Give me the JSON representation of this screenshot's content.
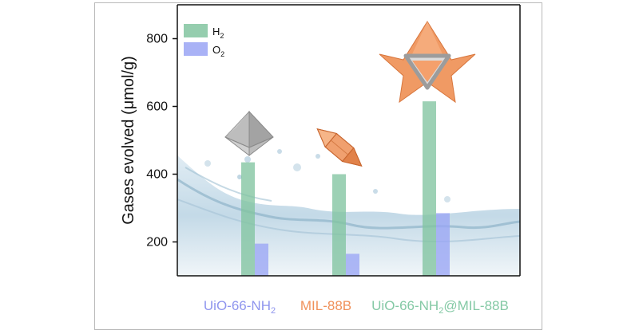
{
  "chart_data": {
    "type": "bar",
    "ylabel": "Gases evolved (μmol/g)",
    "ylim": [
      100,
      900
    ],
    "yticks": [
      200,
      400,
      600,
      800
    ],
    "categories": [
      {
        "base": "UiO-66-NH",
        "sub": "2",
        "rest": "",
        "color": "#8f95ee"
      },
      {
        "base": "MIL-88B",
        "sub": "",
        "rest": "",
        "color": "#f0915a"
      },
      {
        "base": "UiO-66-NH",
        "sub": "2",
        "rest": "@MIL-88B",
        "color": "#84c9a5"
      }
    ],
    "series": [
      {
        "name": "H2",
        "label_base": "H",
        "label_sub": "2",
        "color": "#82c4a0",
        "values": [
          435,
          400,
          615
        ]
      },
      {
        "name": "O2",
        "label_base": "O",
        "label_sub": "2",
        "color": "#9aa5f5",
        "values": [
          195,
          165,
          285
        ]
      }
    ],
    "legend_position": "top-left",
    "grid": false,
    "decorations": [
      "octahedron-icon",
      "hexagonal-bipyramid-icon",
      "star-octahedron-icon",
      "water-splash-background"
    ]
  }
}
